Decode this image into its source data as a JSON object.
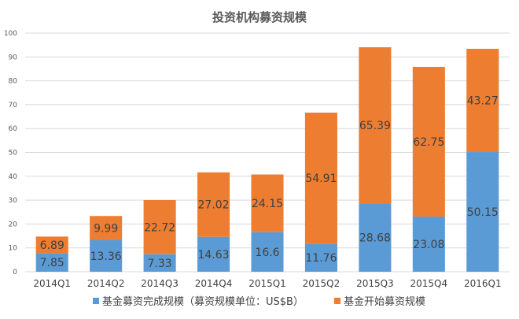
{
  "chart_data": {
    "type": "bar",
    "stacked": true,
    "title": "投资机构募资规模",
    "categories": [
      "2014Q1",
      "2014Q2",
      "2014Q3",
      "2014Q4",
      "2015Q1",
      "2015Q2",
      "2015Q3",
      "2015Q4",
      "2016Q1"
    ],
    "series": [
      {
        "name": "基金募资完成规模（募资规模单位：US$B）",
        "color": "#5b9bd5",
        "values": [
          7.85,
          13.36,
          7.33,
          14.63,
          16.6,
          11.76,
          28.68,
          23.08,
          50.15
        ]
      },
      {
        "name": "基金开始募资规模",
        "color": "#ed7d31",
        "values": [
          6.89,
          9.99,
          22.72,
          27.02,
          24.15,
          54.91,
          65.39,
          62.75,
          43.27
        ]
      }
    ],
    "ylim": [
      0,
      100
    ],
    "yticks": [
      0,
      10,
      20,
      30,
      40,
      50,
      60,
      70,
      80,
      90,
      100
    ],
    "grid": true,
    "legend_position": "bottom",
    "data_labels": true
  }
}
